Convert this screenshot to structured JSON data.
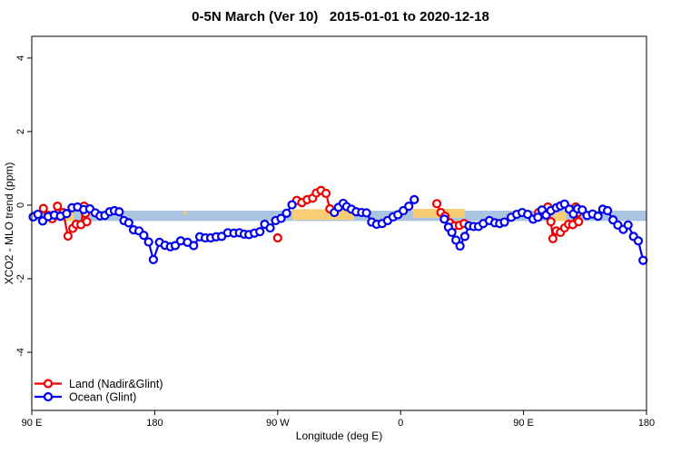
{
  "chart_data": {
    "type": "line",
    "title": "0-5N March (Ver 10)   2015-01-01 to 2020-12-18",
    "xlabel": "Longitude (deg E)",
    "ylabel": "XCO2 - MLO trend (ppm)",
    "xlim": [
      90,
      540
    ],
    "ylim": [
      -5.58,
      4.59
    ],
    "grid": false,
    "x_ticks": [
      {
        "value": 90,
        "label": "90 E"
      },
      {
        "value": 180,
        "label": "180"
      },
      {
        "value": 270,
        "label": "90 W"
      },
      {
        "value": 360,
        "label": "0"
      },
      {
        "value": 450,
        "label": "90 E"
      },
      {
        "value": 540,
        "label": "180"
      }
    ],
    "y_ticks": [
      {
        "value": -4,
        "label": "-4"
      },
      {
        "value": -2,
        "label": "-2"
      },
      {
        "value": 0,
        "label": "0"
      },
      {
        "value": 2,
        "label": "2"
      },
      {
        "value": 4,
        "label": "4"
      }
    ],
    "bands": [
      {
        "name": "ocean-mean-band",
        "color": "#aac3e1",
        "x": [
          90,
          540
        ],
        "y": [
          -0.15,
          -0.43
        ]
      },
      {
        "name": "land-mean-band",
        "color": "#f9cd74",
        "x": [
          111.5,
          120.5
        ],
        "y": [
          -0.18,
          -0.43
        ]
      },
      {
        "name": "land-mean-band",
        "color": "#f9cd74",
        "x": [
          201.3,
          203.5
        ],
        "y": [
          -0.16,
          -0.26
        ]
      },
      {
        "name": "land-mean-band",
        "color": "#f9cd74",
        "x": [
          280.8,
          326.0
        ],
        "y": [
          -0.11,
          -0.4
        ]
      },
      {
        "name": "land-mean-band",
        "color": "#f9cd74",
        "x": [
          369.0,
          407.0
        ],
        "y": [
          -0.1,
          -0.34
        ]
      },
      {
        "name": "land-mean-band",
        "color": "#f9cd74",
        "x": [
          471.5,
          481.5
        ],
        "y": [
          -0.18,
          -0.43
        ]
      }
    ],
    "series": [
      {
        "name": "Land (Nadir&Glint)",
        "color": "#ee0000",
        "segments": [
          [
            [
              98.5,
              -0.09
            ],
            [
              102,
              -0.28
            ],
            [
              105,
              -0.37
            ],
            [
              108.8,
              -0.03
            ],
            [
              113,
              -0.2
            ],
            [
              116.5,
              -0.84
            ],
            [
              120,
              -0.63
            ],
            [
              122.5,
              -0.52
            ],
            [
              126,
              -0.53
            ],
            [
              128.3,
              -0.03
            ],
            [
              129.3,
              -0.22
            ],
            [
              130.3,
              -0.45
            ]
          ],
          [
            [
              270,
              -0.89
            ]
          ],
          [
            [
              284,
              0.13
            ],
            [
              287.7,
              0.07
            ],
            [
              291.6,
              0.15
            ],
            [
              295.6,
              0.19
            ],
            [
              298.3,
              0.33
            ],
            [
              301.7,
              0.4
            ],
            [
              305.4,
              0.32
            ],
            [
              308.2,
              -0.1
            ]
          ],
          [
            [
              386.5,
              0.04
            ],
            [
              389.5,
              -0.2
            ],
            [
              392.5,
              -0.3
            ],
            [
              396,
              -0.48
            ],
            [
              399.5,
              -0.56
            ],
            [
              403,
              -0.55
            ],
            [
              406.5,
              -0.5
            ]
          ],
          [
            [
              461,
              -0.2
            ],
            [
              464.5,
              -0.24
            ],
            [
              467.8,
              -0.05
            ],
            [
              470,
              -0.45
            ],
            [
              471.5,
              -0.91
            ],
            [
              474,
              -0.7
            ],
            [
              477,
              -0.74
            ],
            [
              480,
              -0.62
            ],
            [
              483,
              -0.52
            ],
            [
              486,
              -0.53
            ],
            [
              488.3,
              -0.05
            ],
            [
              489.3,
              -0.22
            ],
            [
              490.3,
              -0.45
            ]
          ]
        ]
      },
      {
        "name": "Ocean (Glint)",
        "color": "#0000ee",
        "segments": [
          [
            [
              91,
              -0.32
            ],
            [
              94.5,
              -0.25
            ],
            [
              98,
              -0.43
            ],
            [
              102,
              -0.31
            ],
            [
              106.5,
              -0.27
            ],
            [
              111,
              -0.3
            ],
            [
              115.5,
              -0.23
            ],
            [
              119.5,
              -0.07
            ],
            [
              123.5,
              -0.05
            ],
            [
              128,
              -0.12
            ],
            [
              132.5,
              -0.1
            ],
            [
              136.5,
              -0.21
            ],
            [
              140,
              -0.29
            ],
            [
              143.5,
              -0.28
            ],
            [
              147,
              -0.18
            ],
            [
              150.5,
              -0.15
            ],
            [
              154,
              -0.18
            ],
            [
              157.5,
              -0.42
            ],
            [
              161,
              -0.48
            ],
            [
              164.5,
              -0.67
            ],
            [
              168.5,
              -0.7
            ],
            [
              172,
              -0.82
            ],
            [
              175.5,
              -1.0
            ],
            [
              179,
              -1.48
            ],
            [
              183.5,
              -1.01
            ],
            [
              187.5,
              -1.09
            ],
            [
              191.5,
              -1.13
            ],
            [
              195,
              -1.1
            ],
            [
              199,
              -0.97
            ],
            [
              204,
              -1.01
            ],
            [
              208.5,
              -1.1
            ],
            [
              213,
              -0.86
            ],
            [
              217,
              -0.89
            ],
            [
              221,
              -0.89
            ],
            [
              225,
              -0.86
            ],
            [
              229,
              -0.85
            ],
            [
              233.5,
              -0.75
            ],
            [
              238,
              -0.76
            ],
            [
              242,
              -0.75
            ],
            [
              245.5,
              -0.79
            ],
            [
              249,
              -0.8
            ],
            [
              253,
              -0.76
            ],
            [
              257,
              -0.72
            ],
            [
              260.5,
              -0.52
            ],
            [
              264.5,
              -0.62
            ],
            [
              268.5,
              -0.42
            ],
            [
              272.5,
              -0.36
            ],
            [
              276.5,
              -0.22
            ],
            [
              280.5,
              0.01
            ]
          ],
          [
            [
              311.5,
              -0.2
            ],
            [
              314.5,
              -0.06
            ],
            [
              318,
              0.05
            ],
            [
              320.5,
              -0.04
            ],
            [
              324,
              -0.11
            ],
            [
              327.5,
              -0.18
            ],
            [
              331.5,
              -0.2
            ],
            [
              335,
              -0.21
            ],
            [
              338.8,
              -0.46
            ],
            [
              342.5,
              -0.52
            ],
            [
              346.5,
              -0.5
            ],
            [
              350.5,
              -0.42
            ],
            [
              354.5,
              -0.32
            ],
            [
              358,
              -0.26
            ],
            [
              362,
              -0.15
            ],
            [
              366,
              -0.03
            ],
            [
              370,
              0.15
            ]
          ],
          [
            [
              392,
              -0.38
            ],
            [
              395,
              -0.6
            ],
            [
              397.5,
              -0.74
            ],
            [
              400.5,
              -0.95
            ],
            [
              403.5,
              -1.11
            ],
            [
              407,
              -0.85
            ],
            [
              410,
              -0.56
            ],
            [
              413.5,
              -0.58
            ],
            [
              417,
              -0.58
            ],
            [
              420.5,
              -0.5
            ],
            [
              425,
              -0.42
            ],
            [
              429,
              -0.48
            ],
            [
              432.5,
              -0.5
            ],
            [
              436,
              -0.46
            ],
            [
              441,
              -0.33
            ],
            [
              445,
              -0.25
            ],
            [
              449,
              -0.2
            ],
            [
              453,
              -0.25
            ],
            [
              457,
              -0.38
            ],
            [
              460.5,
              -0.33
            ],
            [
              463.5,
              -0.13
            ],
            [
              466.5,
              -0.27
            ],
            [
              470,
              -0.15
            ],
            [
              474,
              -0.07
            ],
            [
              477,
              -0.02
            ],
            [
              480,
              0.03
            ],
            [
              483.5,
              -0.11
            ],
            [
              486.5,
              -0.24
            ],
            [
              489.5,
              -0.1
            ],
            [
              493,
              -0.13
            ],
            [
              496.5,
              -0.28
            ],
            [
              500.5,
              -0.24
            ],
            [
              504.5,
              -0.3
            ],
            [
              508,
              -0.11
            ],
            [
              511.5,
              -0.15
            ],
            [
              515.5,
              -0.4
            ],
            [
              519,
              -0.54
            ],
            [
              523,
              -0.66
            ],
            [
              526.5,
              -0.54
            ],
            [
              530.5,
              -0.85
            ],
            [
              534,
              -0.97
            ],
            [
              537.5,
              -1.5
            ]
          ]
        ]
      }
    ],
    "legend": {
      "position": "bottom-left",
      "entries": [
        {
          "label": "Land (Nadir&Glint)",
          "color": "#ee0000"
        },
        {
          "label": "Ocean (Glint)",
          "color": "#0000ee"
        }
      ]
    },
    "style": {
      "marker": "open-circle",
      "marker_radius": 4,
      "line_width": 2.2,
      "axis_color": "#000000",
      "background": "#ffffff"
    }
  }
}
